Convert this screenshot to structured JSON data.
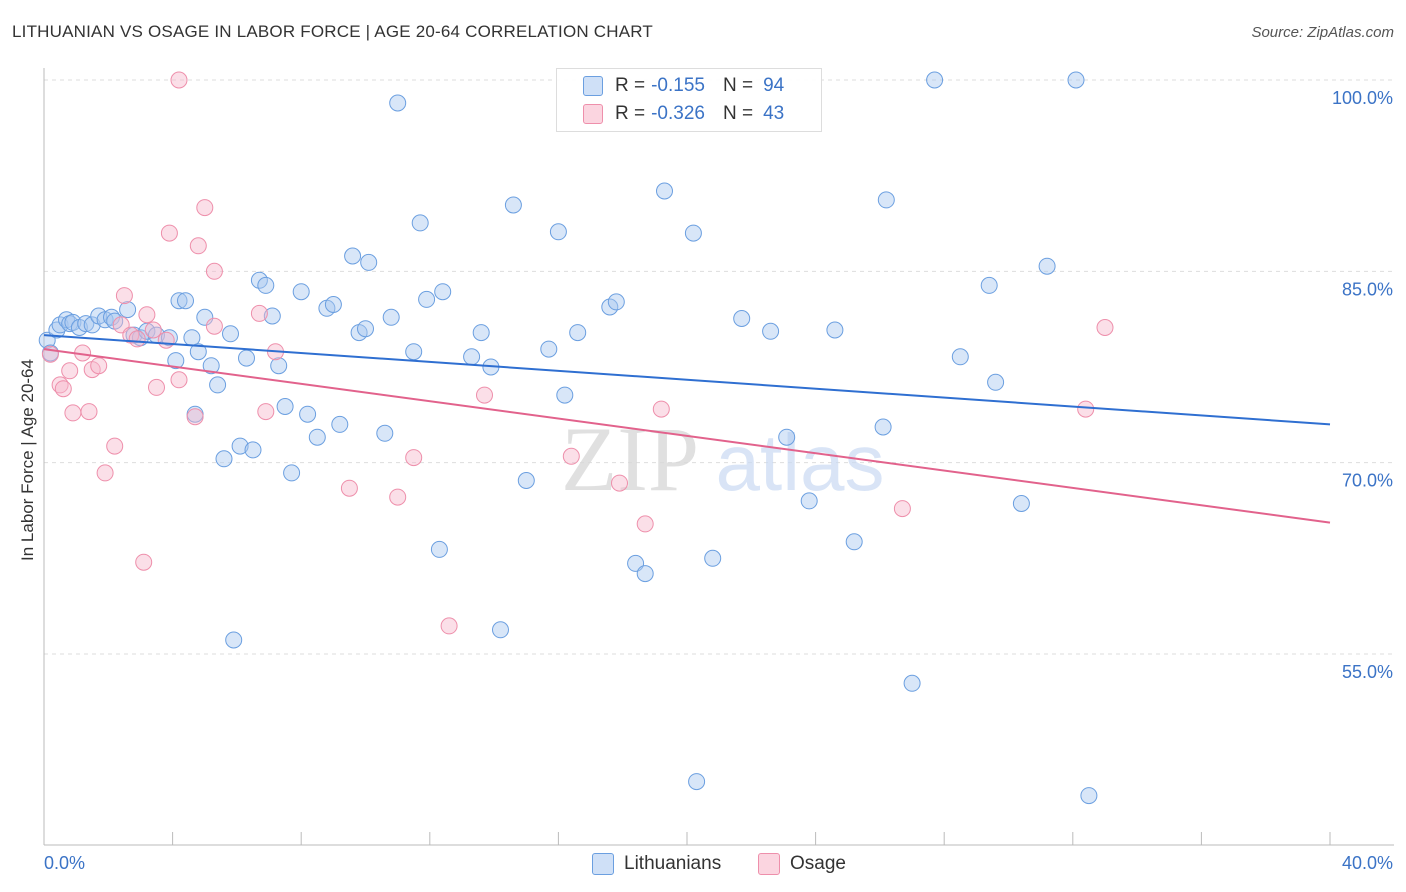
{
  "title": "LITHUANIAN VS OSAGE IN LABOR FORCE | AGE 20-64 CORRELATION CHART",
  "source": "Source: ZipAtlas.com",
  "watermark": {
    "bold": "ZIP",
    "light": "atlas"
  },
  "legend": {
    "rows": [
      {
        "r_label": "R =",
        "r_value": "-0.155",
        "n_label": "N =",
        "n_value": "94",
        "color": "#a9c8f0"
      },
      {
        "r_label": "R =",
        "r_value": "-0.326",
        "n_label": "N =",
        "n_value": "43",
        "color": "#f7b9cb"
      }
    ],
    "value_color": "#3b73c6"
  },
  "bottom_legend": [
    {
      "label": "Lithuanians",
      "color": "#a9c8f0"
    },
    {
      "label": "Osage",
      "color": "#f7b9cb"
    }
  ],
  "chart_data": {
    "type": "scatter",
    "title": "LITHUANIAN VS OSAGE IN LABOR FORCE | AGE 20-64 CORRELATION CHART",
    "xlabel": "",
    "ylabel": "In Labor Force | Age 20-64",
    "xlim": [
      0,
      40
    ],
    "ylim": [
      37,
      102
    ],
    "x_tick_labels": [
      {
        "value": 0,
        "label": "0.0%"
      },
      {
        "value": 40,
        "label": "40.0%"
      }
    ],
    "y_tick_labels": [
      {
        "value": 100,
        "label": "100.0%"
      },
      {
        "value": 85,
        "label": "85.0%"
      },
      {
        "value": 70,
        "label": "70.0%"
      },
      {
        "value": 55,
        "label": "55.0%"
      }
    ],
    "grid": true,
    "series": [
      {
        "name": "Lithuanians",
        "color": "#6b9fe0",
        "fill": "#a9c8f0",
        "trend": {
          "x": [
            0,
            40
          ],
          "y": [
            80.0,
            73.0
          ],
          "color": "#2f6fd1"
        },
        "points": [
          [
            0.1,
            79.6
          ],
          [
            0.2,
            78.6
          ],
          [
            0.4,
            80.4
          ],
          [
            0.5,
            80.8
          ],
          [
            0.7,
            81.2
          ],
          [
            0.8,
            80.9
          ],
          [
            0.9,
            81.0
          ],
          [
            1.1,
            80.6
          ],
          [
            1.3,
            80.9
          ],
          [
            1.5,
            80.8
          ],
          [
            1.7,
            81.5
          ],
          [
            1.9,
            81.2
          ],
          [
            2.1,
            81.4
          ],
          [
            2.2,
            81.1
          ],
          [
            2.6,
            82.0
          ],
          [
            2.8,
            80.0
          ],
          [
            3.0,
            79.8
          ],
          [
            3.2,
            80.3
          ],
          [
            3.5,
            80.0
          ],
          [
            3.9,
            79.8
          ],
          [
            4.1,
            78.0
          ],
          [
            4.2,
            82.7
          ],
          [
            4.4,
            82.7
          ],
          [
            4.6,
            79.8
          ],
          [
            4.7,
            73.8
          ],
          [
            4.8,
            78.7
          ],
          [
            5.0,
            81.4
          ],
          [
            5.2,
            77.6
          ],
          [
            5.4,
            76.1
          ],
          [
            5.6,
            70.3
          ],
          [
            5.8,
            80.1
          ],
          [
            5.9,
            56.1
          ],
          [
            6.1,
            71.3
          ],
          [
            6.3,
            78.2
          ],
          [
            6.5,
            71.0
          ],
          [
            6.7,
            84.3
          ],
          [
            6.9,
            83.9
          ],
          [
            7.1,
            81.5
          ],
          [
            7.3,
            77.6
          ],
          [
            7.5,
            74.4
          ],
          [
            7.7,
            69.2
          ],
          [
            8.0,
            83.4
          ],
          [
            8.2,
            73.8
          ],
          [
            8.5,
            72.0
          ],
          [
            8.8,
            82.1
          ],
          [
            9.0,
            82.4
          ],
          [
            9.2,
            73.0
          ],
          [
            9.6,
            86.2
          ],
          [
            9.8,
            80.2
          ],
          [
            10.0,
            80.5
          ],
          [
            10.1,
            85.7
          ],
          [
            10.6,
            72.3
          ],
          [
            10.8,
            81.4
          ],
          [
            11.0,
            98.2
          ],
          [
            11.5,
            78.7
          ],
          [
            11.7,
            88.8
          ],
          [
            11.9,
            82.8
          ],
          [
            12.3,
            63.2
          ],
          [
            12.4,
            83.4
          ],
          [
            13.3,
            78.3
          ],
          [
            13.6,
            80.2
          ],
          [
            13.9,
            77.5
          ],
          [
            14.2,
            56.9
          ],
          [
            14.6,
            90.2
          ],
          [
            15.0,
            68.6
          ],
          [
            16.0,
            88.1
          ],
          [
            15.7,
            78.9
          ],
          [
            16.2,
            75.3
          ],
          [
            16.6,
            80.2
          ],
          [
            17.6,
            82.2
          ],
          [
            17.8,
            82.6
          ],
          [
            18.4,
            62.1
          ],
          [
            18.7,
            61.3
          ],
          [
            19.3,
            91.3
          ],
          [
            20.2,
            88.0
          ],
          [
            20.3,
            45.0
          ],
          [
            20.8,
            62.5
          ],
          [
            21.7,
            81.3
          ],
          [
            22.6,
            80.3
          ],
          [
            23.1,
            72.0
          ],
          [
            23.8,
            67.0
          ],
          [
            24.6,
            80.4
          ],
          [
            25.2,
            63.8
          ],
          [
            26.1,
            72.8
          ],
          [
            26.2,
            90.6
          ],
          [
            27.0,
            52.7
          ],
          [
            27.7,
            100.0
          ],
          [
            28.5,
            78.3
          ],
          [
            29.4,
            83.9
          ],
          [
            29.6,
            76.3
          ],
          [
            30.4,
            66.8
          ],
          [
            31.2,
            85.4
          ],
          [
            32.1,
            100.0
          ],
          [
            32.5,
            43.9
          ]
        ]
      },
      {
        "name": "Osage",
        "color": "#ee8fab",
        "fill": "#f7b9cb",
        "trend": {
          "x": [
            0,
            40
          ],
          "y": [
            78.9,
            65.3
          ],
          "color": "#e2628c"
        },
        "points": [
          [
            0.2,
            78.5
          ],
          [
            0.5,
            76.1
          ],
          [
            0.6,
            75.8
          ],
          [
            0.8,
            77.2
          ],
          [
            0.9,
            73.9
          ],
          [
            1.2,
            78.6
          ],
          [
            1.4,
            74.0
          ],
          [
            1.5,
            77.3
          ],
          [
            1.7,
            77.6
          ],
          [
            1.9,
            69.2
          ],
          [
            2.2,
            71.3
          ],
          [
            2.4,
            80.8
          ],
          [
            2.5,
            83.1
          ],
          [
            2.7,
            80.0
          ],
          [
            2.9,
            79.7
          ],
          [
            3.1,
            62.2
          ],
          [
            3.2,
            81.6
          ],
          [
            3.4,
            80.4
          ],
          [
            3.5,
            75.9
          ],
          [
            3.8,
            79.6
          ],
          [
            3.9,
            88.0
          ],
          [
            4.2,
            76.5
          ],
          [
            4.2,
            100.0
          ],
          [
            4.7,
            73.6
          ],
          [
            4.8,
            87.0
          ],
          [
            5.0,
            90.0
          ],
          [
            5.3,
            85.0
          ],
          [
            5.3,
            80.7
          ],
          [
            6.7,
            81.7
          ],
          [
            6.9,
            74.0
          ],
          [
            7.2,
            78.7
          ],
          [
            9.5,
            68.0
          ],
          [
            11.0,
            67.3
          ],
          [
            11.5,
            70.4
          ],
          [
            12.6,
            57.2
          ],
          [
            13.7,
            75.3
          ],
          [
            16.4,
            70.5
          ],
          [
            17.9,
            68.4
          ],
          [
            18.7,
            65.2
          ],
          [
            19.2,
            74.2
          ],
          [
            26.7,
            66.4
          ],
          [
            32.4,
            74.2
          ],
          [
            33.0,
            80.6
          ]
        ]
      }
    ]
  }
}
